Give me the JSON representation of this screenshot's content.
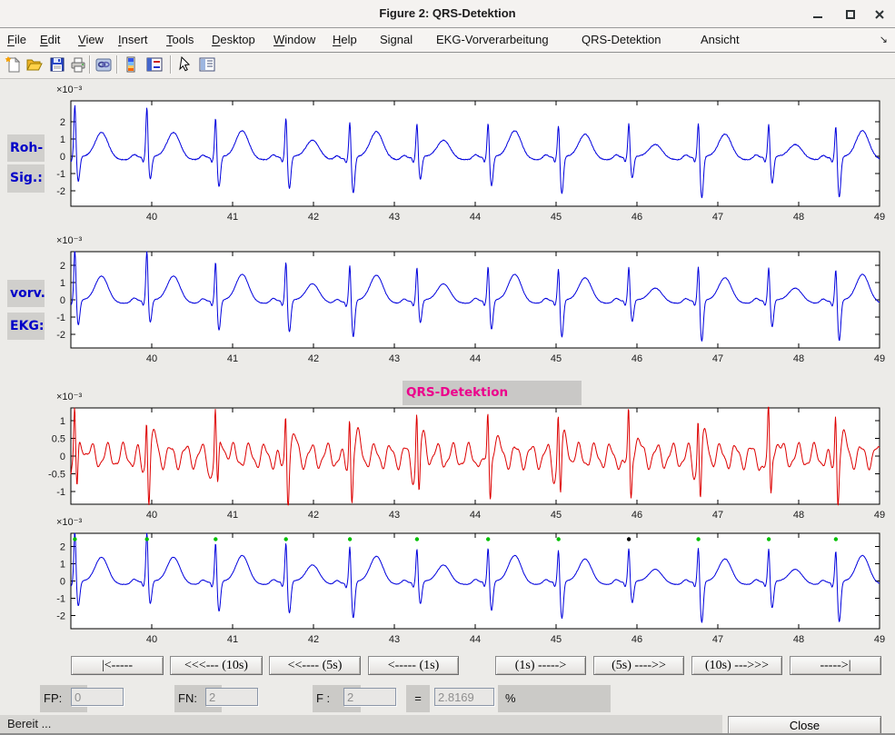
{
  "window": {
    "title": "Figure 2: QRS-Detektion"
  },
  "menubar": {
    "items": [
      {
        "label": "File",
        "mnemonic": true
      },
      {
        "label": "Edit",
        "mnemonic": true
      },
      {
        "label": "View",
        "mnemonic": true
      },
      {
        "label": "Insert",
        "mnemonic": true
      },
      {
        "label": "Tools",
        "mnemonic": true
      },
      {
        "label": "Desktop",
        "mnemonic": true
      },
      {
        "label": "Window",
        "mnemonic": true
      },
      {
        "label": "Help",
        "mnemonic": true
      },
      {
        "label": "Signal",
        "mnemonic": false
      },
      {
        "label": "EKG-Vorverarbeitung",
        "mnemonic": false
      },
      {
        "label": "QRS-Detektion",
        "mnemonic": false
      },
      {
        "label": "Ansicht",
        "mnemonic": false
      }
    ],
    "overflow_icon": "↘"
  },
  "toolbar": {
    "icons": [
      "new-figure",
      "open-file",
      "save-figure",
      "print-figure",
      "link-plot",
      "insert-colorbar",
      "insert-legend",
      "edit-plot",
      "plot-browser"
    ]
  },
  "plot_side_labels": {
    "plot1_line1": "Roh-",
    "plot1_line2": "Sig.:",
    "plot2_line1": "vorv.",
    "plot2_line2": "EKG:"
  },
  "chart_data": [
    {
      "type": "line",
      "id": "roh-signal",
      "exponent": "×10⁻³",
      "xlim": [
        39,
        49
      ],
      "xticks": [
        40,
        41,
        42,
        43,
        44,
        45,
        46,
        47,
        48,
        49
      ],
      "ylim": [
        -2.89,
        3.21
      ],
      "yticks": [
        -2,
        -1,
        0,
        1,
        2
      ],
      "color": "#0000dd",
      "signal": "ecg",
      "noise": 0.05
    },
    {
      "type": "line",
      "id": "vorverarbeitetes-ekg",
      "exponent": "×10⁻³",
      "xlim": [
        39,
        49
      ],
      "xticks": [
        40,
        41,
        42,
        43,
        44,
        45,
        46,
        47,
        48,
        49
      ],
      "ylim": [
        -2.79,
        2.79
      ],
      "yticks": [
        -2,
        -1,
        0,
        1,
        2
      ],
      "color": "#0000dd",
      "signal": "ecg",
      "noise": 0.03
    },
    {
      "type": "line",
      "id": "qrs-filter-signal",
      "title": "QRS-Detektion",
      "exponent": "×10⁻³",
      "xlim": [
        39,
        49
      ],
      "xticks": [
        40,
        41,
        42,
        43,
        44,
        45,
        46,
        47,
        48,
        49
      ],
      "ylim": [
        -1.38,
        1.38
      ],
      "yticks": [
        -1,
        -0.5,
        0,
        0.5,
        1
      ],
      "color": "#dd0000",
      "signal": "filtered",
      "noise": 0.02
    },
    {
      "type": "line",
      "id": "detektion-ergebnis",
      "exponent": "×10⁻³",
      "xlim": [
        39,
        49
      ],
      "xticks": [
        40,
        41,
        42,
        43,
        44,
        45,
        46,
        47,
        48,
        49
      ],
      "ylim": [
        -2.76,
        2.76
      ],
      "yticks": [
        -2,
        -1,
        0,
        1,
        2
      ],
      "color": "#0000dd",
      "signal": "ecg",
      "noise": 0.03,
      "markers": {
        "y": 2.42
      }
    }
  ],
  "beats": [
    {
      "t": 39.05,
      "r": 3.05,
      "s": -1.45,
      "tw": 1.4,
      "marker": "green"
    },
    {
      "t": 39.94,
      "r": 2.95,
      "s": -1.3,
      "tw": 1.4,
      "marker": "green"
    },
    {
      "t": 40.79,
      "r": 2.35,
      "s": -1.75,
      "tw": 1.5,
      "marker": "green"
    },
    {
      "t": 41.66,
      "r": 2.35,
      "s": -1.85,
      "tw": 0.95,
      "marker": "green"
    },
    {
      "t": 42.45,
      "r": 2.2,
      "s": -2.1,
      "tw": 1.45,
      "marker": "green"
    },
    {
      "t": 43.28,
      "r": 2.0,
      "s": -1.3,
      "tw": 0.95,
      "marker": "green"
    },
    {
      "t": 44.16,
      "r": 2.05,
      "s": -1.7,
      "tw": 1.5,
      "marker": "green"
    },
    {
      "t": 45.03,
      "r": 1.95,
      "s": -2.15,
      "tw": 1.3,
      "marker": "green"
    },
    {
      "t": 45.9,
      "r": 2.0,
      "s": -1.25,
      "tw": 0.7,
      "marker": "black"
    },
    {
      "t": 46.76,
      "r": 2.1,
      "s": -2.4,
      "tw": 1.3,
      "marker": "green"
    },
    {
      "t": 47.63,
      "r": 2.0,
      "s": -1.55,
      "tw": 0.7,
      "marker": "green"
    },
    {
      "t": 48.46,
      "r": 1.95,
      "s": -2.35,
      "tw": 1.5,
      "marker": "green"
    }
  ],
  "oscillation": {
    "freq": 5.15,
    "amp": 0.3,
    "freq2": 11.0,
    "amp2": 0.09,
    "qrs_pos": 1.3,
    "qrs_neg": -1.2
  },
  "nav_buttons": [
    "|<-----",
    "<<<--- (10s)",
    "<<---- (5s)",
    "<----- (1s)",
    "(1s) ----->",
    "(5s) ---->>",
    "(10s) --->>>",
    "----->|"
  ],
  "stats": {
    "fp_label": "FP:",
    "fp_value": "0",
    "fn_label": "FN:",
    "fn_value": "2",
    "f_label": "F :",
    "f_value": "2",
    "equals": "=",
    "f_result": "2.8169",
    "percent": "%"
  },
  "statusbar": {
    "text": "Bereit ...",
    "close_label": "Close"
  },
  "colors": {
    "trace_blue": "#0000dd",
    "trace_red": "#dd0000",
    "marker_green": "#00c000",
    "marker_black": "#000000",
    "side_label_blue": "#0000c8",
    "plot_title_magenta": "#ec008c"
  }
}
